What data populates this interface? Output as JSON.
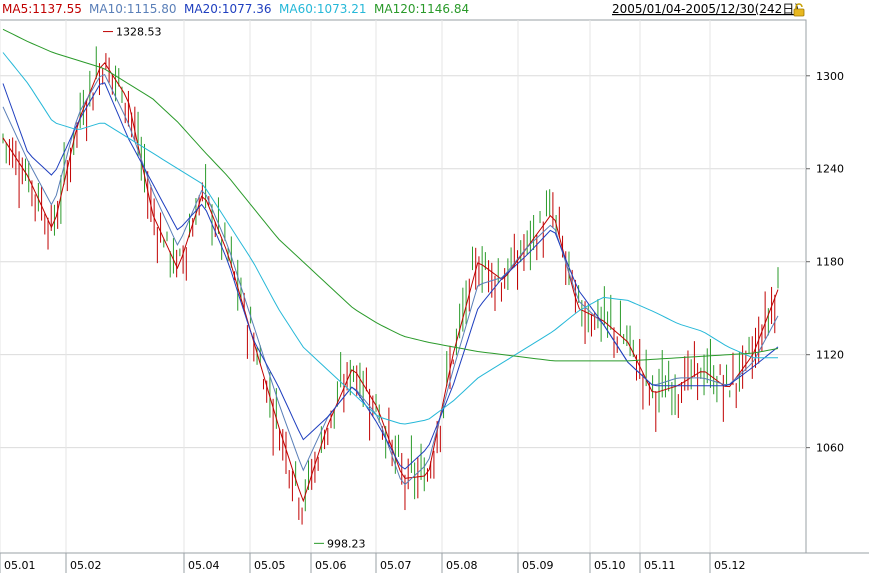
{
  "header": {
    "legend": [
      {
        "label": "MA5:1137.55",
        "color": "#c00000"
      },
      {
        "label": "MA10:1115.80",
        "color": "#5a7fb8"
      },
      {
        "label": "MA20:1077.36",
        "color": "#1f3fbf"
      },
      {
        "label": "MA60:1073.21",
        "color": "#26b8d8"
      },
      {
        "label": "MA120:1146.84",
        "color": "#2a9a2a"
      }
    ],
    "range_label": "2005/01/04-2005/12/30(242日)",
    "lock_icon": "lock-icon"
  },
  "chart_data": {
    "type": "candlestick",
    "x_labels": [
      "05.01",
      "05.02",
      "05.04",
      "05.05",
      "05.06",
      "05.07",
      "05.08",
      "05.09",
      "05.10",
      "05.11",
      "05.12"
    ],
    "y_ticks": [
      1060,
      1120,
      1180,
      1240,
      1300
    ],
    "ylim": [
      992,
      1336
    ],
    "annotations": [
      {
        "label": "1328.53",
        "value": 1328.53,
        "kind": "high"
      },
      {
        "label": "998.23",
        "value": 998.23,
        "kind": "low"
      }
    ],
    "candle_colors": {
      "up": "#c00000",
      "down": "#2a9a2a"
    },
    "grid": true,
    "ma_anchors": {
      "MA5": [
        1260,
        1235,
        1200,
        1270,
        1310,
        1285,
        1210,
        1175,
        1225,
        1185,
        1130,
        1075,
        1025,
        1075,
        1112,
        1085,
        1040,
        1042,
        1120,
        1180,
        1168,
        1190,
        1212,
        1150,
        1142,
        1128,
        1095,
        1100,
        1110,
        1098,
        1120,
        1162
      ],
      "MA10": [
        1280,
        1245,
        1215,
        1275,
        1303,
        1270,
        1225,
        1190,
        1228,
        1190,
        1140,
        1090,
        1045,
        1080,
        1100,
        1080,
        1035,
        1050,
        1110,
        1165,
        1170,
        1190,
        1205,
        1155,
        1140,
        1115,
        1100,
        1105,
        1105,
        1100,
        1115,
        1145
      ],
      "MA20": [
        1295,
        1250,
        1235,
        1270,
        1298,
        1260,
        1230,
        1200,
        1218,
        1180,
        1130,
        1100,
        1065,
        1080,
        1100,
        1075,
        1045,
        1060,
        1100,
        1150,
        1170,
        1185,
        1202,
        1162,
        1140,
        1115,
        1100,
        1100,
        1100,
        1100,
        1112,
        1125
      ],
      "MA60": [
        1315,
        1295,
        1270,
        1265,
        1270,
        1260,
        1250,
        1240,
        1230,
        1205,
        1180,
        1150,
        1125,
        1110,
        1095,
        1080,
        1075,
        1078,
        1090,
        1105,
        1115,
        1125,
        1135,
        1148,
        1157,
        1155,
        1148,
        1140,
        1135,
        1125,
        1118,
        1118
      ],
      "MA120": [
        1330,
        1322,
        1315,
        1310,
        1305,
        1295,
        1285,
        1270,
        1252,
        1235,
        1215,
        1195,
        1180,
        1165,
        1150,
        1140,
        1132,
        1128,
        1125,
        1122,
        1120,
        1118,
        1116,
        1116,
        1116,
        1116,
        1117,
        1118,
        1119,
        1120,
        1121,
        1124
      ]
    }
  }
}
